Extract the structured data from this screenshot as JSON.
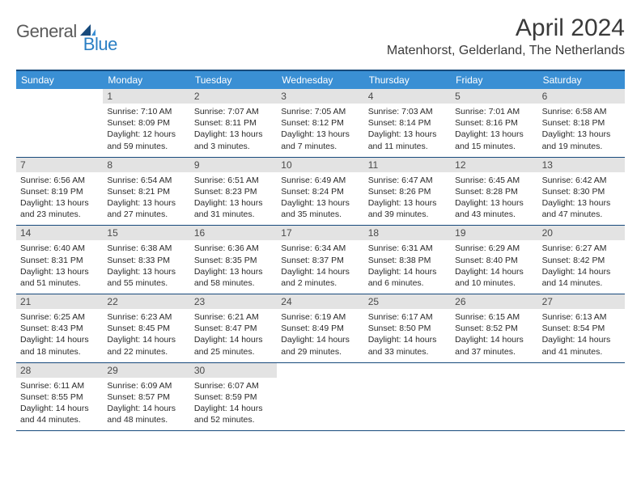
{
  "logo": {
    "part1": "General",
    "part2": "Blue"
  },
  "title": "April 2024",
  "location": "Matenhorst, Gelderland, The Netherlands",
  "colors": {
    "header_bar": "#3a8fd4",
    "border": "#174a7c",
    "daynum_bg": "#e3e3e3",
    "text": "#2a2a2a",
    "logo_gray": "#5a5a5a",
    "logo_blue": "#2a7fc4"
  },
  "layout": {
    "columns": 7,
    "rows": 5,
    "start_offset": 1,
    "days_in_month": 30
  },
  "days_of_week": [
    "Sunday",
    "Monday",
    "Tuesday",
    "Wednesday",
    "Thursday",
    "Friday",
    "Saturday"
  ],
  "days": [
    {
      "n": 1,
      "sunrise": "7:10 AM",
      "sunset": "8:09 PM",
      "daylight": "12 hours and 59 minutes."
    },
    {
      "n": 2,
      "sunrise": "7:07 AM",
      "sunset": "8:11 PM",
      "daylight": "13 hours and 3 minutes."
    },
    {
      "n": 3,
      "sunrise": "7:05 AM",
      "sunset": "8:12 PM",
      "daylight": "13 hours and 7 minutes."
    },
    {
      "n": 4,
      "sunrise": "7:03 AM",
      "sunset": "8:14 PM",
      "daylight": "13 hours and 11 minutes."
    },
    {
      "n": 5,
      "sunrise": "7:01 AM",
      "sunset": "8:16 PM",
      "daylight": "13 hours and 15 minutes."
    },
    {
      "n": 6,
      "sunrise": "6:58 AM",
      "sunset": "8:18 PM",
      "daylight": "13 hours and 19 minutes."
    },
    {
      "n": 7,
      "sunrise": "6:56 AM",
      "sunset": "8:19 PM",
      "daylight": "13 hours and 23 minutes."
    },
    {
      "n": 8,
      "sunrise": "6:54 AM",
      "sunset": "8:21 PM",
      "daylight": "13 hours and 27 minutes."
    },
    {
      "n": 9,
      "sunrise": "6:51 AM",
      "sunset": "8:23 PM",
      "daylight": "13 hours and 31 minutes."
    },
    {
      "n": 10,
      "sunrise": "6:49 AM",
      "sunset": "8:24 PM",
      "daylight": "13 hours and 35 minutes."
    },
    {
      "n": 11,
      "sunrise": "6:47 AM",
      "sunset": "8:26 PM",
      "daylight": "13 hours and 39 minutes."
    },
    {
      "n": 12,
      "sunrise": "6:45 AM",
      "sunset": "8:28 PM",
      "daylight": "13 hours and 43 minutes."
    },
    {
      "n": 13,
      "sunrise": "6:42 AM",
      "sunset": "8:30 PM",
      "daylight": "13 hours and 47 minutes."
    },
    {
      "n": 14,
      "sunrise": "6:40 AM",
      "sunset": "8:31 PM",
      "daylight": "13 hours and 51 minutes."
    },
    {
      "n": 15,
      "sunrise": "6:38 AM",
      "sunset": "8:33 PM",
      "daylight": "13 hours and 55 minutes."
    },
    {
      "n": 16,
      "sunrise": "6:36 AM",
      "sunset": "8:35 PM",
      "daylight": "13 hours and 58 minutes."
    },
    {
      "n": 17,
      "sunrise": "6:34 AM",
      "sunset": "8:37 PM",
      "daylight": "14 hours and 2 minutes."
    },
    {
      "n": 18,
      "sunrise": "6:31 AM",
      "sunset": "8:38 PM",
      "daylight": "14 hours and 6 minutes."
    },
    {
      "n": 19,
      "sunrise": "6:29 AM",
      "sunset": "8:40 PM",
      "daylight": "14 hours and 10 minutes."
    },
    {
      "n": 20,
      "sunrise": "6:27 AM",
      "sunset": "8:42 PM",
      "daylight": "14 hours and 14 minutes."
    },
    {
      "n": 21,
      "sunrise": "6:25 AM",
      "sunset": "8:43 PM",
      "daylight": "14 hours and 18 minutes."
    },
    {
      "n": 22,
      "sunrise": "6:23 AM",
      "sunset": "8:45 PM",
      "daylight": "14 hours and 22 minutes."
    },
    {
      "n": 23,
      "sunrise": "6:21 AM",
      "sunset": "8:47 PM",
      "daylight": "14 hours and 25 minutes."
    },
    {
      "n": 24,
      "sunrise": "6:19 AM",
      "sunset": "8:49 PM",
      "daylight": "14 hours and 29 minutes."
    },
    {
      "n": 25,
      "sunrise": "6:17 AM",
      "sunset": "8:50 PM",
      "daylight": "14 hours and 33 minutes."
    },
    {
      "n": 26,
      "sunrise": "6:15 AM",
      "sunset": "8:52 PM",
      "daylight": "14 hours and 37 minutes."
    },
    {
      "n": 27,
      "sunrise": "6:13 AM",
      "sunset": "8:54 PM",
      "daylight": "14 hours and 41 minutes."
    },
    {
      "n": 28,
      "sunrise": "6:11 AM",
      "sunset": "8:55 PM",
      "daylight": "14 hours and 44 minutes."
    },
    {
      "n": 29,
      "sunrise": "6:09 AM",
      "sunset": "8:57 PM",
      "daylight": "14 hours and 48 minutes."
    },
    {
      "n": 30,
      "sunrise": "6:07 AM",
      "sunset": "8:59 PM",
      "daylight": "14 hours and 52 minutes."
    }
  ],
  "labels": {
    "sunrise_prefix": "Sunrise: ",
    "sunset_prefix": "Sunset: ",
    "daylight_prefix": "Daylight: "
  }
}
